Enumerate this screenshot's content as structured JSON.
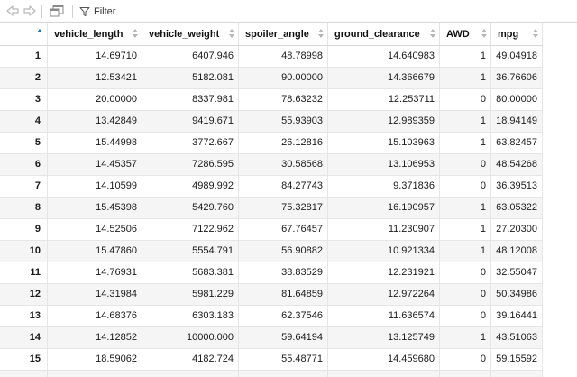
{
  "toolbar": {
    "back_icon": "arrow-left-icon",
    "forward_icon": "arrow-right-icon",
    "popout_icon": "popout-window-icon",
    "filter_icon": "funnel-icon",
    "filter_label": "Filter"
  },
  "table": {
    "index_header": "",
    "sort_indicator": "ascending",
    "columns": [
      "vehicle_length",
      "vehicle_weight",
      "spoiler_angle",
      "ground_clearance",
      "AWD",
      "mpg"
    ],
    "rows": [
      {
        "idx": "1",
        "cells": [
          "14.69710",
          "6407.946",
          "48.78998",
          "14.640983",
          "1",
          "49.04918"
        ]
      },
      {
        "idx": "2",
        "cells": [
          "12.53421",
          "5182.081",
          "90.00000",
          "14.366679",
          "1",
          "36.76606"
        ]
      },
      {
        "idx": "3",
        "cells": [
          "20.00000",
          "8337.981",
          "78.63232",
          "12.253711",
          "0",
          "80.00000"
        ]
      },
      {
        "idx": "4",
        "cells": [
          "13.42849",
          "9419.671",
          "55.93903",
          "12.989359",
          "1",
          "18.94149"
        ]
      },
      {
        "idx": "5",
        "cells": [
          "15.44998",
          "3772.667",
          "26.12816",
          "15.103963",
          "1",
          "63.82457"
        ]
      },
      {
        "idx": "6",
        "cells": [
          "14.45357",
          "7286.595",
          "30.58568",
          "13.106953",
          "0",
          "48.54268"
        ]
      },
      {
        "idx": "7",
        "cells": [
          "14.10599",
          "4989.992",
          "84.27743",
          "9.371836",
          "0",
          "36.39513"
        ]
      },
      {
        "idx": "8",
        "cells": [
          "15.45398",
          "5429.760",
          "75.32817",
          "16.190957",
          "1",
          "63.05322"
        ]
      },
      {
        "idx": "9",
        "cells": [
          "14.52506",
          "7122.962",
          "67.76457",
          "11.230907",
          "1",
          "27.20300"
        ]
      },
      {
        "idx": "10",
        "cells": [
          "15.47860",
          "5554.791",
          "56.90882",
          "10.921334",
          "1",
          "48.12008"
        ]
      },
      {
        "idx": "11",
        "cells": [
          "14.76931",
          "5683.381",
          "38.83529",
          "12.231921",
          "0",
          "32.55047"
        ]
      },
      {
        "idx": "12",
        "cells": [
          "14.31984",
          "5981.229",
          "81.64859",
          "12.972264",
          "0",
          "50.34986"
        ]
      },
      {
        "idx": "13",
        "cells": [
          "14.68376",
          "6303.183",
          "62.37546",
          "11.636574",
          "0",
          "39.16441"
        ]
      },
      {
        "idx": "14",
        "cells": [
          "14.12852",
          "10000.000",
          "59.64194",
          "13.125749",
          "1",
          "43.51063"
        ]
      },
      {
        "idx": "15",
        "cells": [
          "18.59062",
          "4182.724",
          "55.48771",
          "14.459680",
          "0",
          "59.15592"
        ]
      }
    ]
  },
  "colors": {
    "sort_active": "#1a73c7",
    "sort_inactive": "#b5b5b5",
    "row_alt": "#f5f5f5",
    "grid_line": "#e6e6e6"
  }
}
